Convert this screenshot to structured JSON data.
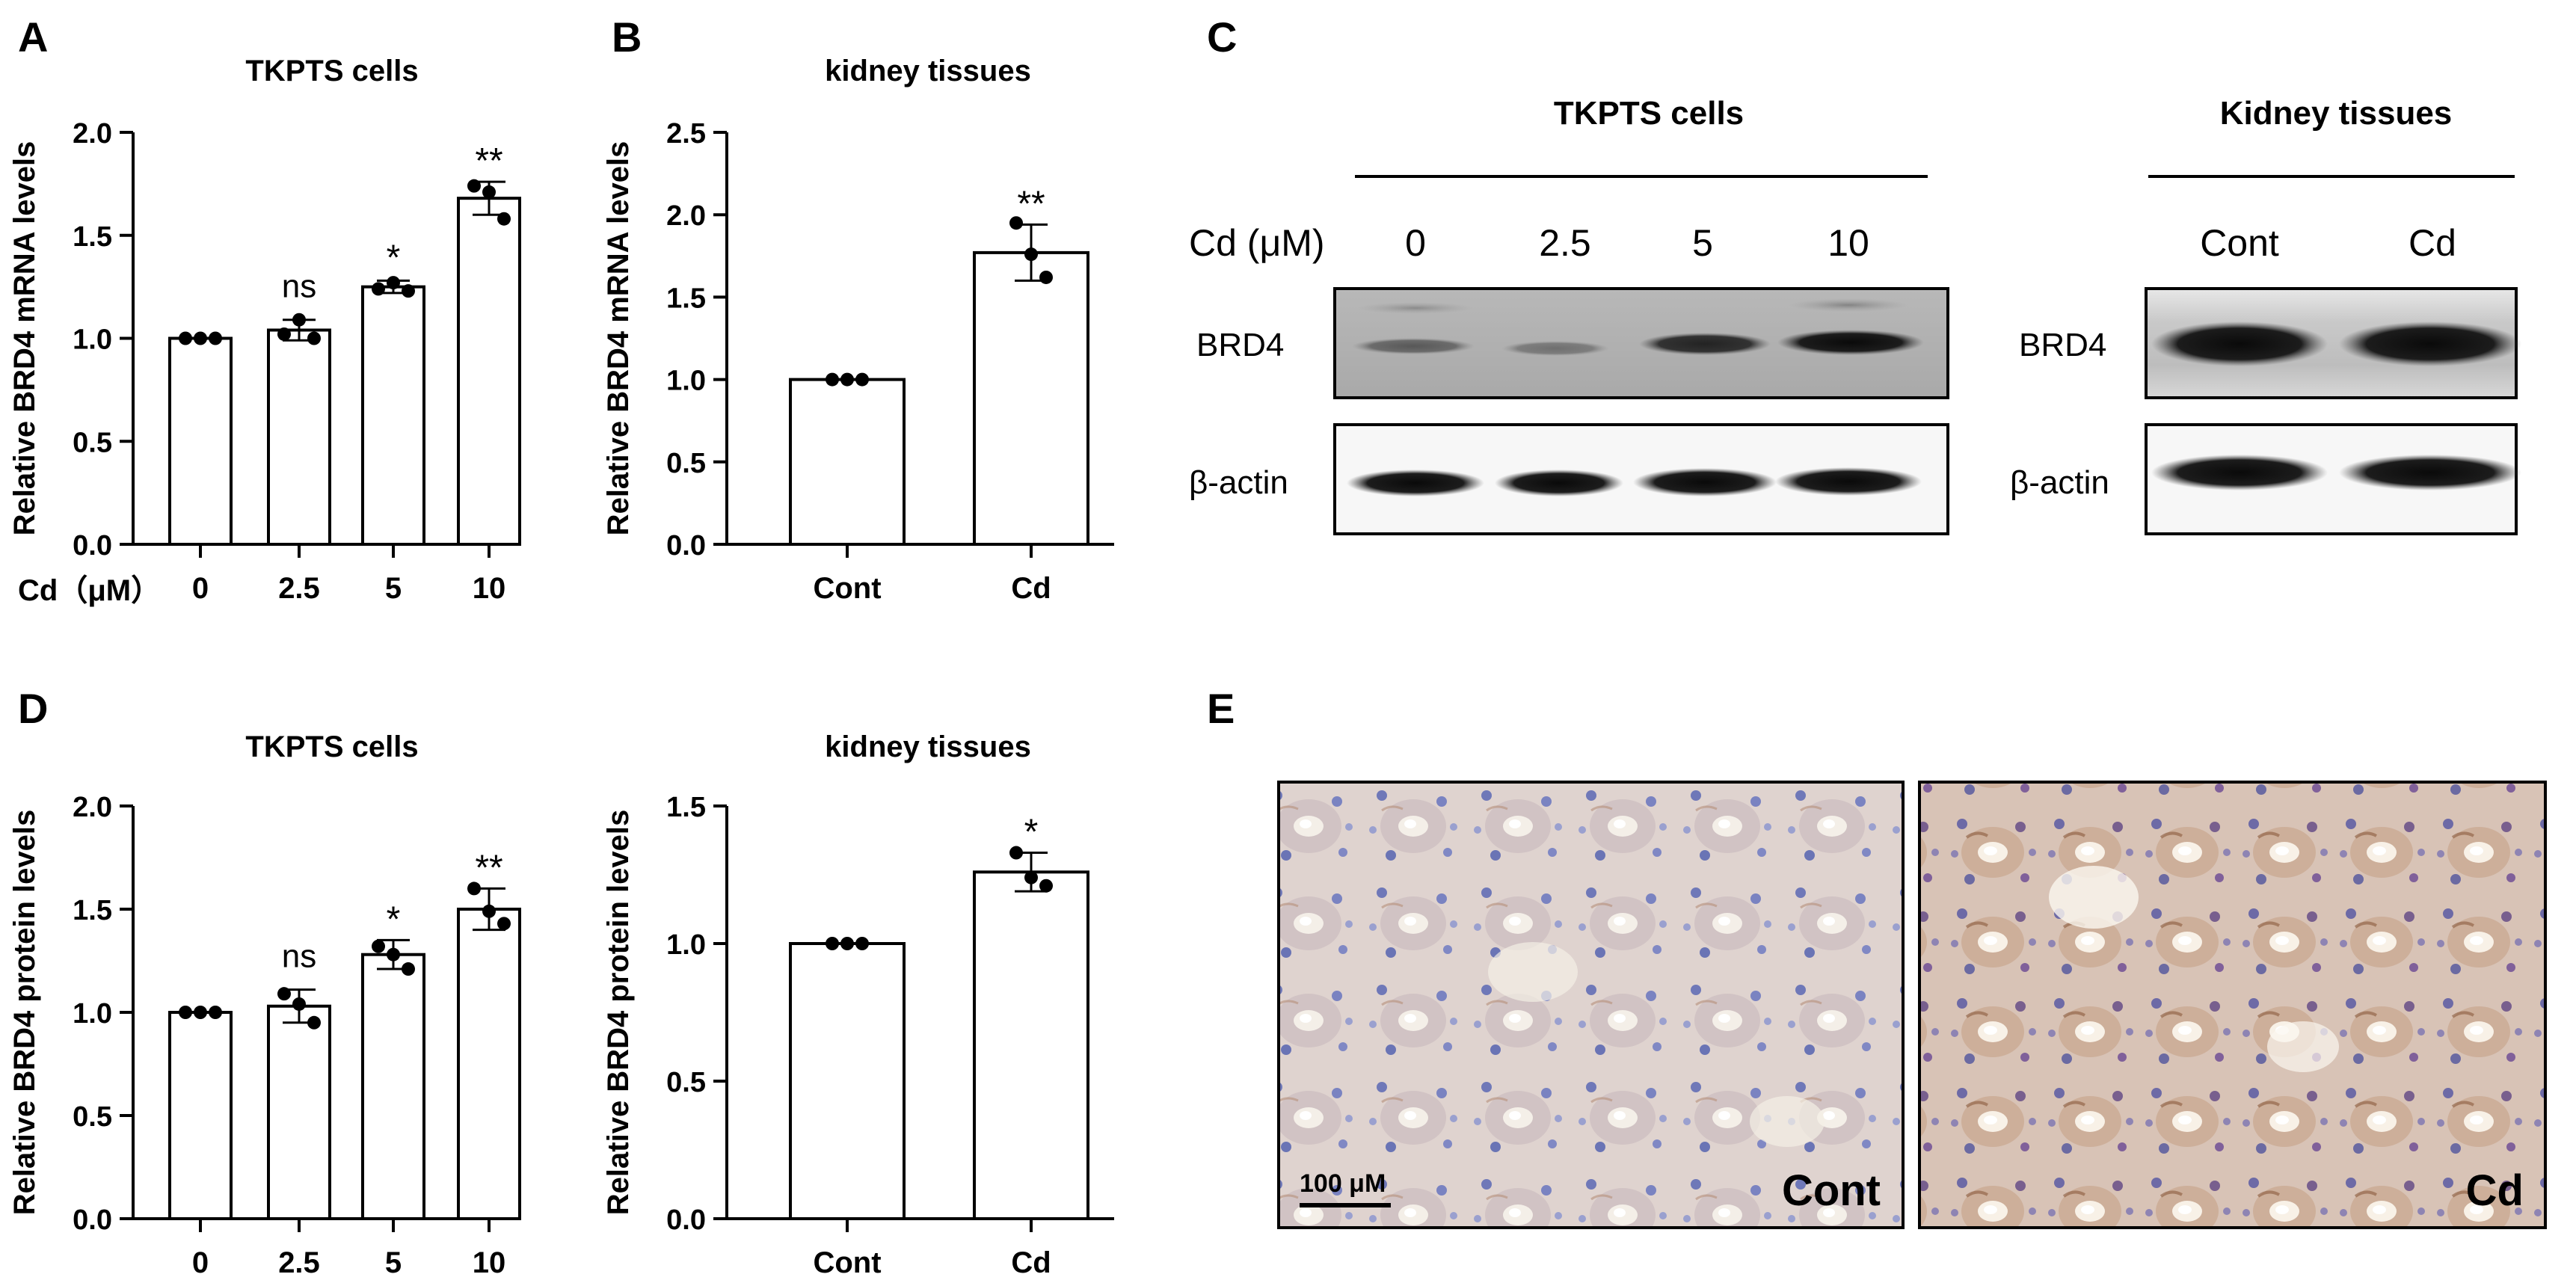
{
  "panels": {
    "A": "A",
    "B": "B",
    "C": "C",
    "D": "D",
    "E": "E"
  },
  "chart_data": [
    {
      "id": "A",
      "type": "bar",
      "title": "TKPTS cells",
      "ylabel": "Relative BRD4 mRNA levels",
      "xlabel": "Cd（μM）",
      "categories": [
        "0",
        "2.5",
        "5",
        "10"
      ],
      "values": [
        1.0,
        1.04,
        1.25,
        1.68
      ],
      "errors": [
        0.0,
        0.05,
        0.03,
        0.08
      ],
      "points": [
        [
          1.0,
          1.0,
          1.0
        ],
        [
          1.02,
          1.09,
          1.0
        ],
        [
          1.24,
          1.27,
          1.23
        ],
        [
          1.74,
          1.71,
          1.58
        ]
      ],
      "significance": [
        "",
        "ns",
        "*",
        "**"
      ],
      "ylim": [
        0,
        2.0
      ],
      "yticks": [
        "0.0",
        "0.5",
        "1.0",
        "1.5",
        "2.0"
      ],
      "ytick_values": [
        0,
        0.5,
        1.0,
        1.5,
        2.0
      ]
    },
    {
      "id": "B",
      "type": "bar",
      "title": "kidney tissues",
      "ylabel": "Relative BRD4 mRNA levels",
      "xlabel": "",
      "categories": [
        "Cont",
        "Cd"
      ],
      "values": [
        1.0,
        1.77
      ],
      "errors": [
        0.0,
        0.17
      ],
      "points": [
        [
          1.0,
          1.0,
          1.0
        ],
        [
          1.95,
          1.76,
          1.62
        ]
      ],
      "significance": [
        "",
        "**"
      ],
      "ylim": [
        0,
        2.5
      ],
      "yticks": [
        "0.0",
        "0.5",
        "1.0",
        "1.5",
        "2.0",
        "2.5"
      ],
      "ytick_values": [
        0,
        0.5,
        1.0,
        1.5,
        2.0,
        2.5
      ]
    },
    {
      "id": "D1",
      "type": "bar",
      "title": "TKPTS cells",
      "ylabel": "Relative BRD4 protein levels",
      "xlabel": "",
      "categories": [
        "0",
        "2.5",
        "5",
        "10"
      ],
      "values": [
        1.0,
        1.03,
        1.28,
        1.5
      ],
      "errors": [
        0.0,
        0.08,
        0.07,
        0.1
      ],
      "points": [
        [
          1.0,
          1.0,
          1.0
        ],
        [
          1.09,
          1.04,
          0.95
        ],
        [
          1.32,
          1.28,
          1.21
        ],
        [
          1.6,
          1.49,
          1.43
        ]
      ],
      "significance": [
        "",
        "ns",
        "*",
        "**"
      ],
      "ylim": [
        0,
        2.0
      ],
      "yticks": [
        "0.0",
        "0.5",
        "1.0",
        "1.5",
        "2.0"
      ],
      "ytick_values": [
        0,
        0.5,
        1.0,
        1.5,
        2.0
      ]
    },
    {
      "id": "D2",
      "type": "bar",
      "title": "kidney tissues",
      "ylabel": "Relative BRD4 protein levels",
      "xlabel": "",
      "categories": [
        "Cont",
        "Cd"
      ],
      "values": [
        1.0,
        1.26
      ],
      "errors": [
        0.0,
        0.07
      ],
      "points": [
        [
          1.0,
          1.0,
          1.0
        ],
        [
          1.33,
          1.24,
          1.21
        ]
      ],
      "significance": [
        "",
        "*"
      ],
      "ylim": [
        0,
        1.5
      ],
      "yticks": [
        "0.0",
        "0.5",
        "1.0",
        "1.5"
      ],
      "ytick_values": [
        0,
        0.5,
        1.0,
        1.5
      ]
    }
  ],
  "blot": {
    "cells_title": "TKPTS cells",
    "tissue_title": "Kidney tissues",
    "dose_label": "Cd (μM)",
    "doses": [
      "0",
      "2.5",
      "5",
      "10"
    ],
    "groups": [
      "Cont",
      "Cd"
    ],
    "row1_label": "BRD4",
    "row2_label": "β-actin",
    "row1_label_b": "BRD4",
    "row2_label_b": "β-actin"
  },
  "ihc": {
    "scale_label": "100 μM",
    "left_label": "Cont",
    "right_label": "Cd"
  }
}
